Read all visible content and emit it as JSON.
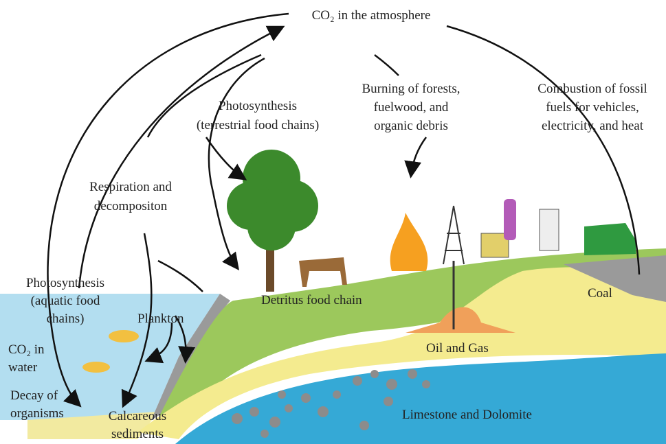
{
  "title": "CO₂ in the atmosphere",
  "labels": {
    "photosynthesis_terrestrial": [
      "Photosynthesis",
      "(terrestrial food chains)"
    ],
    "burning": [
      "Burning of forests,",
      "fuelwood, and",
      "organic debris"
    ],
    "combustion": [
      "Combustion of fossil",
      "fuels for vehicles,",
      "electricity, and heat"
    ],
    "respiration": [
      "Respiration and",
      "decompositon"
    ],
    "photosynthesis_aquatic": [
      "Photosynthesis",
      "(aquatic food",
      "chains)"
    ],
    "plankton": "Plankton",
    "co2_water": [
      "CO₂ in",
      "water"
    ],
    "decay": [
      "Decay of",
      "organisms"
    ],
    "calcareous": [
      "Calcareous",
      "sediments"
    ],
    "detritus": "Detritus food chain",
    "coal": "Coal",
    "oil_gas": "Oil and Gas",
    "limestone": "Limestone and Dolomite"
  }
}
